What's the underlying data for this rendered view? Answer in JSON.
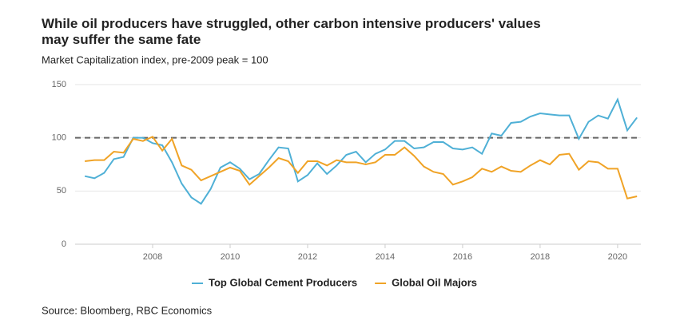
{
  "chart_data": {
    "type": "line",
    "title": "While oil producers have struggled, other carbon intensive producers' values may suffer the same fate",
    "subtitle": "Market Capitalization index, pre-2009 peak = 100",
    "source": "Source: Bloomberg, RBC Economics",
    "x": [
      2006.25,
      2006.5,
      2006.75,
      2007,
      2007.25,
      2007.5,
      2007.75,
      2008,
      2008.25,
      2008.5,
      2008.75,
      2009,
      2009.25,
      2009.5,
      2009.75,
      2010,
      2010.25,
      2010.5,
      2010.75,
      2011,
      2011.25,
      2011.5,
      2011.75,
      2012,
      2012.25,
      2012.5,
      2012.75,
      2013,
      2013.25,
      2013.5,
      2013.75,
      2014,
      2014.25,
      2014.5,
      2014.75,
      2015,
      2015.25,
      2015.5,
      2015.75,
      2016,
      2016.25,
      2016.5,
      2016.75,
      2017,
      2017.25,
      2017.5,
      2017.75,
      2018,
      2018.25,
      2018.5,
      2018.75,
      2019,
      2019.25,
      2019.5,
      2019.75,
      2020,
      2020.25,
      2020.5
    ],
    "series": [
      {
        "name": "Top Global Cement Producers",
        "color": "#4fb0d6",
        "values": [
          64,
          62,
          67,
          80,
          82,
          100,
          100,
          95,
          93,
          77,
          57,
          44,
          38,
          52,
          72,
          77,
          71,
          61,
          66,
          79,
          91,
          90,
          59,
          65,
          76,
          66,
          74,
          84,
          87,
          77,
          85,
          89,
          97,
          97,
          90,
          91,
          96,
          96,
          90,
          89,
          91,
          85,
          104,
          102,
          114,
          115,
          120,
          123,
          122,
          121,
          121,
          99,
          115,
          121,
          118,
          136,
          107,
          119
        ]
      },
      {
        "name": "Global Oil Majors",
        "color": "#f0a326",
        "values": [
          78,
          79,
          79,
          87,
          86,
          99,
          97,
          101,
          88,
          99,
          74,
          70,
          60,
          64,
          68,
          72,
          69,
          56,
          64,
          72,
          81,
          78,
          67,
          78,
          78,
          74,
          79,
          77,
          77,
          75,
          77,
          84,
          84,
          91,
          83,
          73,
          68,
          66,
          56,
          59,
          63,
          71,
          68,
          73,
          69,
          68,
          74,
          79,
          75,
          84,
          85,
          70,
          78,
          77,
          71,
          71,
          43,
          45
        ]
      }
    ],
    "reference_line": 100,
    "xlim": [
      2006,
      2020.6
    ],
    "xticks": [
      2008,
      2010,
      2012,
      2014,
      2016,
      2018,
      2020
    ],
    "ylim": [
      0,
      150
    ],
    "yticks": [
      0,
      50,
      100,
      150
    ],
    "grid": true
  }
}
